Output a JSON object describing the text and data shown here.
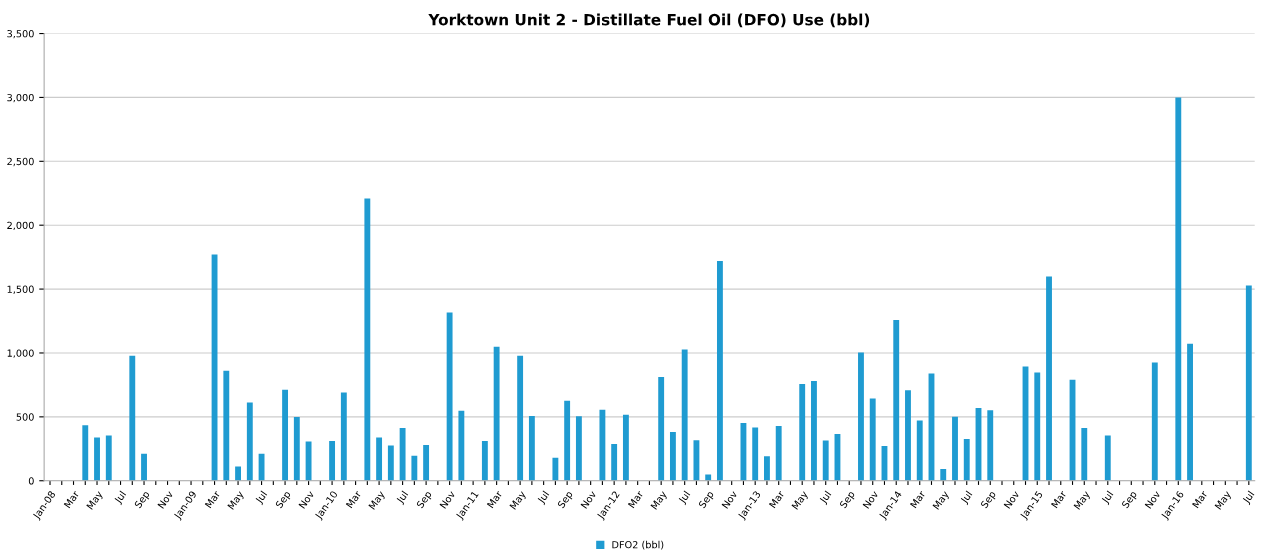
{
  "chart_data": {
    "type": "bar",
    "title": "Yorktown Unit 2 - Distillate Fuel Oil (DFO) Use (bbl)",
    "categories": [
      "Jan-08",
      null,
      "Mar",
      null,
      "May",
      null,
      "Jul",
      null,
      "Sep",
      null,
      "Nov",
      null,
      "Jan-09",
      null,
      "Mar",
      null,
      "May",
      null,
      "Jul",
      null,
      "Sep",
      null,
      "Nov",
      null,
      "Jan-10",
      null,
      "Mar",
      null,
      "May",
      null,
      "Jul",
      null,
      "Sep",
      null,
      "Nov",
      null,
      "Jan-11",
      null,
      "Mar",
      null,
      "May",
      null,
      "Jul",
      null,
      "Sep",
      null,
      "Nov",
      null,
      "Jan-12",
      null,
      "Mar",
      null,
      "May",
      null,
      "Jul",
      null,
      "Sep",
      null,
      "Nov",
      null,
      "Jan-13",
      null,
      "Mar",
      null,
      "May",
      null,
      "Jul",
      null,
      "Sep",
      null,
      "Nov",
      null,
      "Jan-14",
      null,
      "Mar",
      null,
      "May",
      null,
      "Jul",
      null,
      "Sep",
      null,
      "Nov",
      null,
      "Jan-15",
      null,
      "Mar",
      null,
      "May",
      null,
      "Jul",
      null,
      "Sep",
      null,
      "Nov",
      null,
      "Jan-16",
      null,
      "Mar",
      null,
      "May",
      null,
      "Jul"
    ],
    "series": [
      {
        "name": "DFO2 (bbl)",
        "color": "#1f9bd1",
        "values": [
          0,
          0,
          0,
          435,
          339,
          355,
          0,
          979,
          211,
          0,
          0,
          0,
          0,
          0,
          1770,
          861,
          112,
          613,
          211,
          0,
          712,
          499,
          307,
          0,
          312,
          691,
          0,
          2208,
          339,
          275,
          413,
          195,
          280,
          0,
          1317,
          547,
          0,
          312,
          1048,
          0,
          979,
          507,
          0,
          179,
          627,
          504,
          0,
          555,
          288,
          517,
          0,
          0,
          811,
          381,
          1027,
          317,
          48,
          1720,
          0,
          451,
          416,
          192,
          429,
          0,
          757,
          781,
          315,
          365,
          0,
          1003,
          643,
          272,
          1259,
          709,
          472,
          840,
          91,
          501,
          327,
          569,
          551,
          0,
          0,
          894,
          848,
          1598,
          0,
          790,
          412,
          0,
          354,
          0,
          0,
          0,
          926,
          0,
          3000,
          1072,
          0,
          0,
          0,
          0,
          1529
        ]
      }
    ],
    "ylim": [
      0,
      3500
    ],
    "yticks": [
      {
        "value": 0,
        "label": "0"
      },
      {
        "value": 500,
        "label": "500"
      },
      {
        "value": 1000,
        "label": "1,000"
      },
      {
        "value": 1500,
        "label": "1,500"
      },
      {
        "value": 2000,
        "label": "2,000"
      },
      {
        "value": 2500,
        "label": "2,500"
      },
      {
        "value": 3000,
        "label": "3,000"
      },
      {
        "value": 3500,
        "label": "3,500"
      }
    ],
    "grid": "y",
    "legend": "bottom"
  }
}
